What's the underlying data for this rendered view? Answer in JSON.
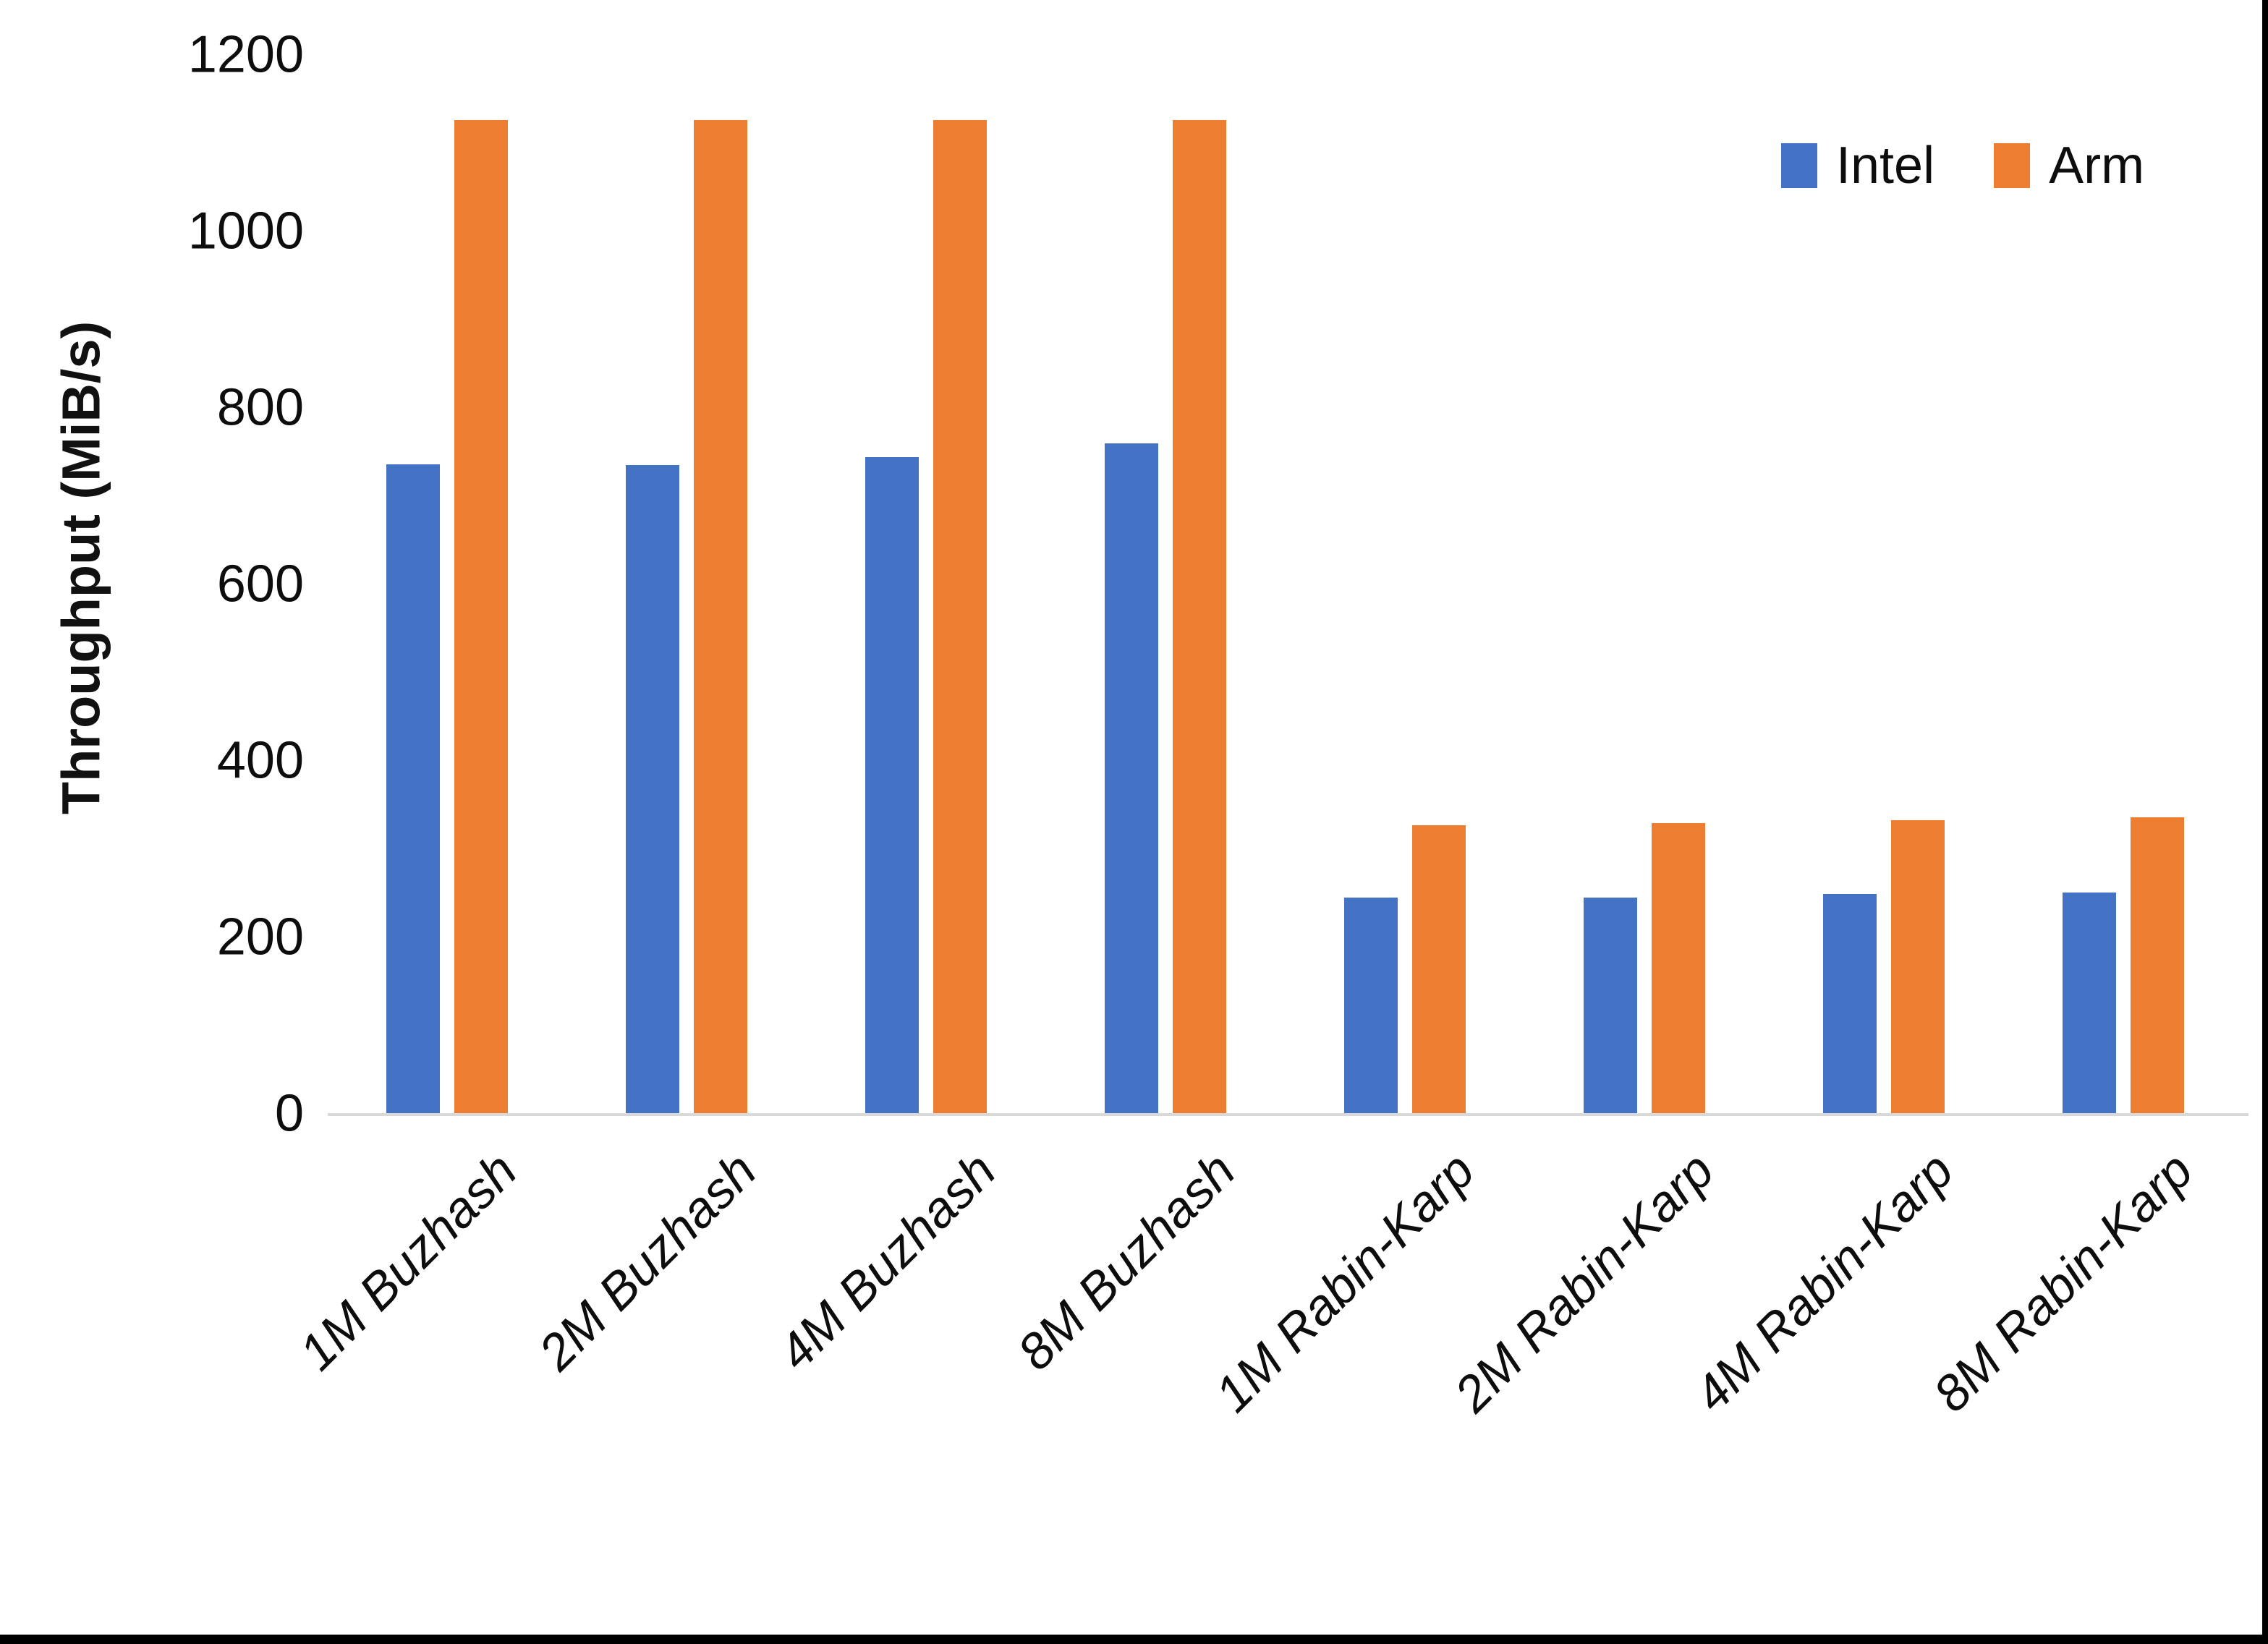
{
  "chart_data": {
    "type": "bar",
    "title": "",
    "ylabel": "Throughput (MiB/s)",
    "xlabel": "",
    "categories": [
      "1M Buzhash",
      "2M Buzhash",
      "4M Buzhash",
      "8M Buzhash",
      "1M Rabin-Karp",
      "2M Rabin-Karp",
      "4M Rabin-Karp",
      "8M Rabin-Karp"
    ],
    "series": [
      {
        "name": "Intel",
        "color": "#4472C4",
        "values": [
          737,
          736,
          745,
          761,
          246,
          246,
          250,
          252
        ]
      },
      {
        "name": "Arm",
        "color": "#ED7D31",
        "values": [
          1127,
          1127,
          1127,
          1127,
          328,
          330,
          334,
          337
        ]
      }
    ],
    "ylim": [
      0,
      1200
    ],
    "yticks": [
      0,
      200,
      400,
      600,
      800,
      1000,
      1200
    ],
    "grid": false,
    "legend_position": "top-right",
    "axis_line_color": "#d9d9d9"
  }
}
